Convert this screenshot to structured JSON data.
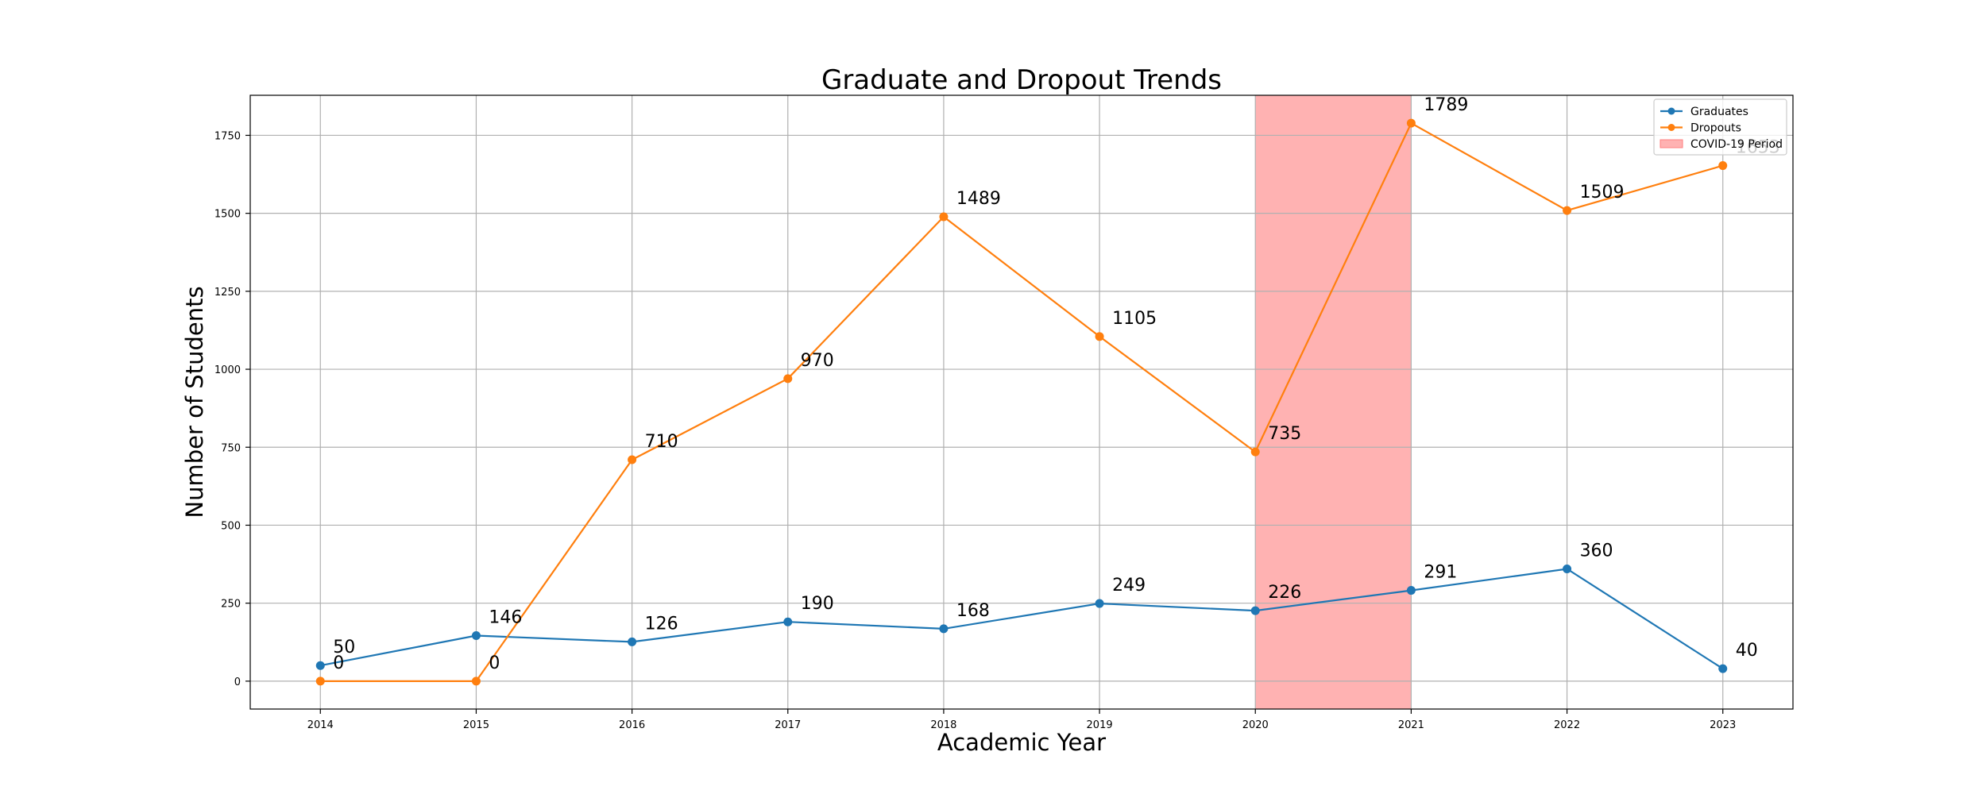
{
  "chart_data": {
    "type": "line",
    "title": "Graduate and Dropout Trends",
    "xlabel": "Academic Year",
    "ylabel": "Number of Students",
    "x": [
      2014,
      2015,
      2016,
      2017,
      2018,
      2019,
      2020,
      2021,
      2022,
      2023
    ],
    "x_tick_labels": [
      "2014",
      "2015",
      "2016",
      "2017",
      "2018",
      "2019",
      "2020",
      "2021",
      "2022",
      "2023"
    ],
    "y_ticks": [
      0,
      250,
      500,
      750,
      1000,
      1250,
      1500,
      1750
    ],
    "y_tick_labels": [
      "0",
      "250",
      "500",
      "750",
      "1000",
      "1250",
      "1500",
      "1750"
    ],
    "xlim": [
      2013.55,
      2023.45
    ],
    "ylim": [
      -89.45,
      1878.45
    ],
    "grid": true,
    "legend_position": "top-right",
    "series": [
      {
        "name": "Graduates",
        "color": "#1f77b4",
        "values": [
          50,
          146,
          126,
          190,
          168,
          249,
          226,
          291,
          360,
          40
        ],
        "labels": [
          "50",
          "146",
          "126",
          "190",
          "168",
          "249",
          "226",
          "291",
          "360",
          "40"
        ]
      },
      {
        "name": "Dropouts",
        "color": "#ff7f0e",
        "values": [
          0,
          0,
          710,
          970,
          1489,
          1105,
          735,
          1789,
          1509,
          1653
        ],
        "labels": [
          "0",
          "0",
          "710",
          "970",
          "1489",
          "1105",
          "735",
          "1789",
          "1509",
          "1653"
        ]
      }
    ],
    "shaded_regions": [
      {
        "name": "COVID-19 Period",
        "start": 2020,
        "end": 2021,
        "color": "#ff7f7f",
        "opacity": 0.6
      }
    ]
  }
}
